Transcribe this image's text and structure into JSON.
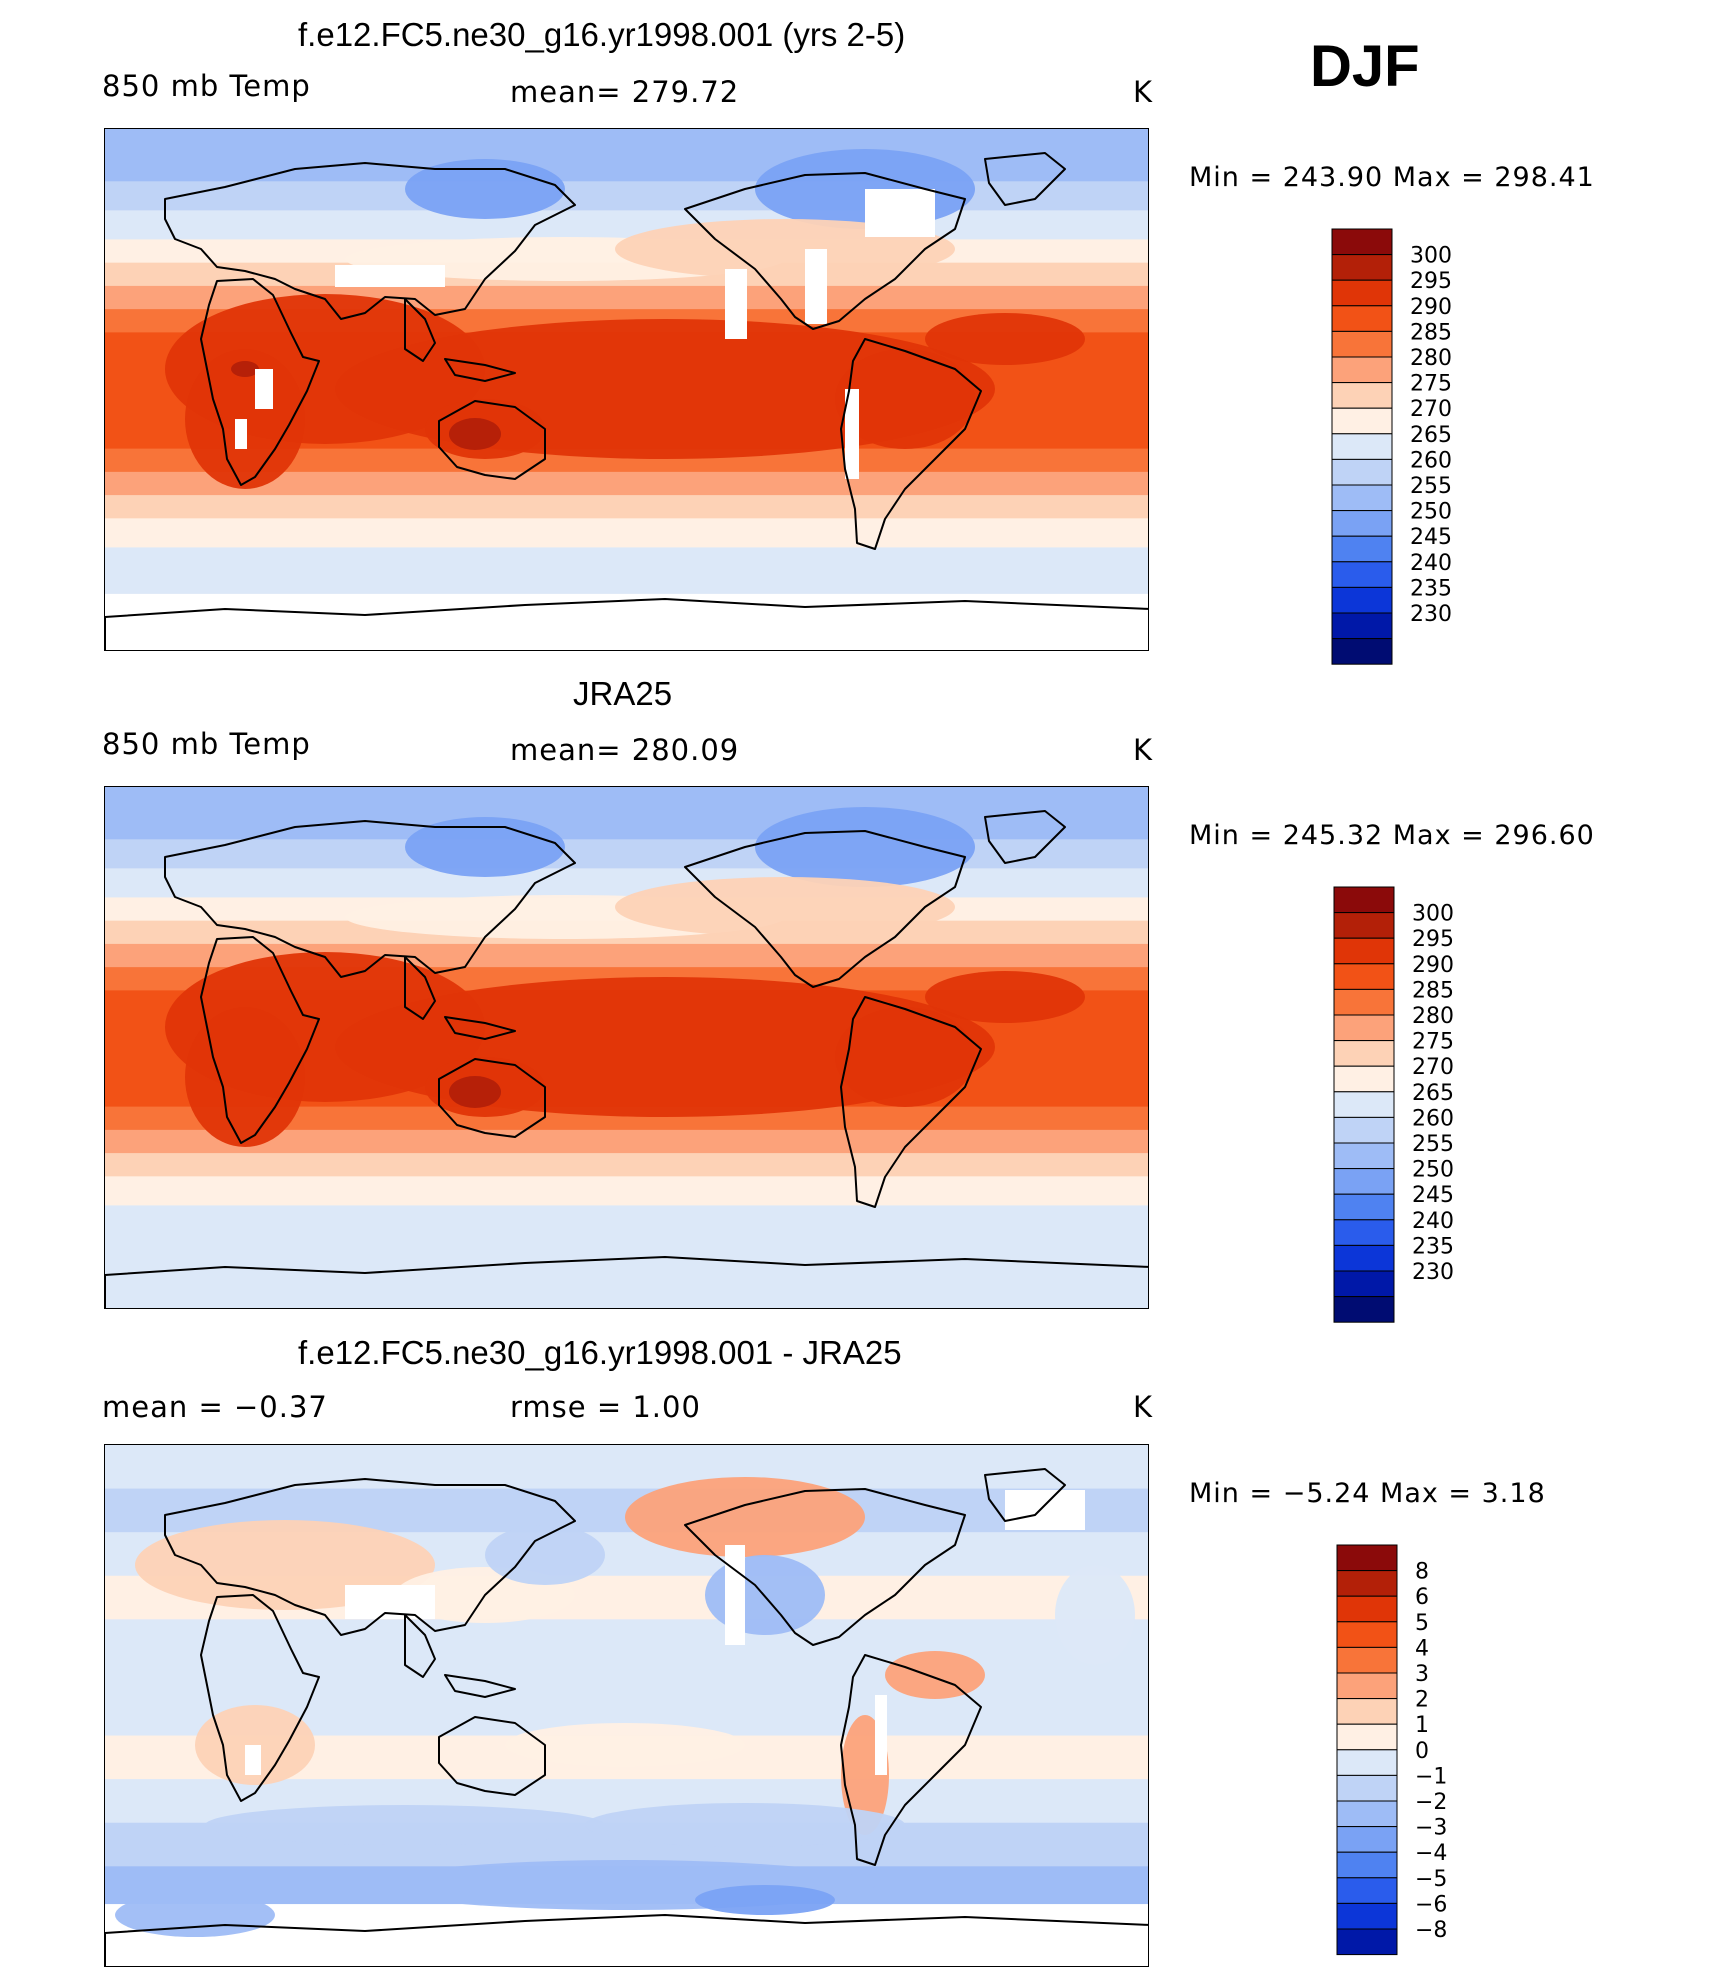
{
  "season": "DJF",
  "panels": [
    {
      "title": "f.e12.FC5.ne30_g16.yr1998.001 (yrs 2-5)",
      "left_text": "850  mb  Temp",
      "center_text": "mean=  279.72",
      "units": "K",
      "min_max": "Min  =  243.90  Max  =  298.41",
      "colorbar": {
        "labels": [
          "300",
          "295",
          "290",
          "285",
          "280",
          "275",
          "270",
          "265",
          "260",
          "255",
          "250",
          "245",
          "240",
          "235",
          "230"
        ],
        "colors": [
          "#8b0a0a",
          "#b32008",
          "#e03507",
          "#f25216",
          "#f87439",
          "#fca27a",
          "#fdd2b6",
          "#fff0e4",
          "#dce8f8",
          "#bfd3f6",
          "#9ebcf6",
          "#7aa2f4",
          "#4f82f1",
          "#2a5cec",
          "#0c36d8",
          "#0018a8",
          "#000c72"
        ]
      },
      "field": "model"
    },
    {
      "title": "JRA25",
      "left_text": "850  mb  Temp",
      "center_text": "mean=  280.09",
      "units": "K",
      "min_max": "Min  =  245.32  Max  =  296.60",
      "colorbar": {
        "labels": [
          "300",
          "295",
          "290",
          "285",
          "280",
          "275",
          "270",
          "265",
          "260",
          "255",
          "250",
          "245",
          "240",
          "235",
          "230"
        ],
        "colors": [
          "#8b0a0a",
          "#b32008",
          "#e03507",
          "#f25216",
          "#f87439",
          "#fca27a",
          "#fdd2b6",
          "#fff0e4",
          "#dce8f8",
          "#bfd3f6",
          "#9ebcf6",
          "#7aa2f4",
          "#4f82f1",
          "#2a5cec",
          "#0c36d8",
          "#0018a8",
          "#000c72"
        ]
      },
      "field": "obs"
    },
    {
      "title": "f.e12.FC5.ne30_g16.yr1998.001 - JRA25",
      "left_text": "mean  =    −0.37",
      "center_text": "rmse  =     1.00",
      "units": "K",
      "min_max": "Min  =    −5.24  Max  =     3.18",
      "colorbar": {
        "labels": [
          "8",
          "6",
          "5",
          "4",
          "3",
          "2",
          "1",
          "0",
          "−1",
          "−2",
          "−3",
          "−4",
          "−5",
          "−6",
          "−8"
        ],
        "colors": [
          "#8b0a0a",
          "#b32008",
          "#e03507",
          "#f25216",
          "#f87439",
          "#fca27a",
          "#fdd2b6",
          "#fff0e4",
          "#dce8f8",
          "#bfd3f6",
          "#9ebcf6",
          "#7aa2f4",
          "#4f82f1",
          "#2a5cec",
          "#0c36d8",
          "#0018a8"
        ]
      },
      "field": "diff"
    }
  ]
}
